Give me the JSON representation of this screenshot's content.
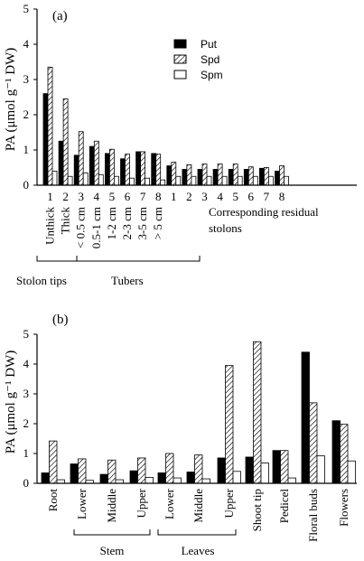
{
  "colors": {
    "put": "#000000",
    "spd_hatch": "#000000",
    "spm": "#ffffff",
    "stroke": "#000000"
  },
  "chart_data": [
    {
      "type": "bar",
      "panel_label": "(a)",
      "ylabel": "PA (μmol g⁻¹ DW)",
      "ylim": [
        0,
        5
      ],
      "yticks": [
        "0",
        "1",
        "2",
        "3",
        "4",
        "5"
      ],
      "categories": [
        "1",
        "2",
        "3",
        "4",
        "5",
        "6",
        "7",
        "8",
        "1",
        "2",
        "3",
        "4",
        "5",
        "6",
        "7",
        "8"
      ],
      "category_sublabels": [
        "Unthick",
        "Thick",
        "< 0.5 cm",
        "0.5-1 cm",
        "1-2 cm",
        "2-3 cm",
        "3-5 cm",
        "> 5 cm",
        "",
        "",
        "",
        "",
        "",
        "",
        "",
        ""
      ],
      "series": [
        {
          "name": "Put",
          "values": [
            2.6,
            1.25,
            0.85,
            1.1,
            0.9,
            0.75,
            0.95,
            0.9,
            0.55,
            0.45,
            0.45,
            0.45,
            0.45,
            0.45,
            0.48,
            0.4
          ]
        },
        {
          "name": "Spd",
          "values": [
            3.35,
            2.45,
            1.52,
            1.25,
            1.02,
            0.88,
            0.95,
            0.88,
            0.65,
            0.58,
            0.6,
            0.6,
            0.6,
            0.52,
            0.5,
            0.55
          ]
        },
        {
          "name": "Spm",
          "values": [
            0.4,
            0.25,
            0.35,
            0.3,
            0.25,
            0.2,
            0.2,
            0.15,
            0.25,
            0.25,
            0.25,
            0.25,
            0.25,
            0.25,
            0.25,
            0.25
          ]
        }
      ],
      "legend": [
        "Put",
        "Spd",
        "Spm"
      ],
      "legend_position": "top-right",
      "group_labels": [
        "Stolon tips",
        "Tubers"
      ],
      "right_label_line1": "Corresponding residual",
      "right_label_line2": "stolons"
    },
    {
      "type": "bar",
      "panel_label": "(b)",
      "ylabel": "PA (μmol g⁻¹ DW)",
      "ylim": [
        0,
        5
      ],
      "yticks": [
        "0",
        "1",
        "2",
        "3",
        "4",
        "5"
      ],
      "categories": [
        "Root",
        "Lower",
        "Middle",
        "Upper",
        "Lower",
        "Middle",
        "Upper",
        "Shoot tip",
        "Pedicel",
        "Floral buds",
        "Flowers"
      ],
      "series": [
        {
          "name": "Put",
          "values": [
            0.35,
            0.65,
            0.3,
            0.42,
            0.35,
            0.38,
            0.85,
            0.88,
            1.1,
            4.4,
            2.1
          ]
        },
        {
          "name": "Spd",
          "values": [
            1.42,
            0.82,
            0.78,
            0.85,
            1.0,
            0.95,
            3.95,
            4.75,
            1.1,
            2.7,
            1.98
          ]
        },
        {
          "name": "Spm",
          "values": [
            0.12,
            0.1,
            0.12,
            0.2,
            0.18,
            0.15,
            0.4,
            0.68,
            0.18,
            0.92,
            0.75
          ]
        }
      ],
      "group_labels": [
        "Stem",
        "Leaves"
      ]
    }
  ]
}
